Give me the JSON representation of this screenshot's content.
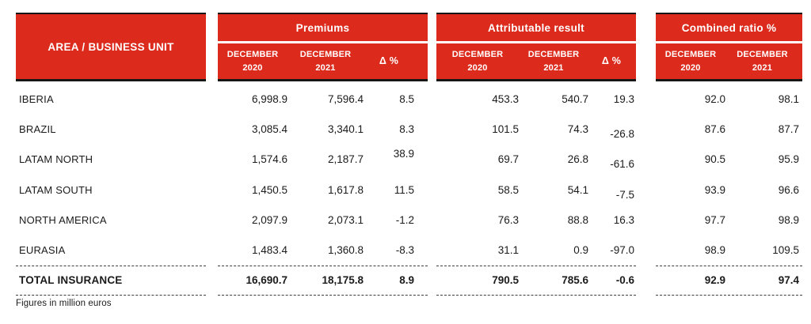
{
  "chart_data": {
    "type": "table",
    "area_header": "AREA / BUSINESS UNIT",
    "groups": [
      {
        "label": "Premiums",
        "columns": [
          "DECEMBER\n2020",
          "DECEMBER\n2021",
          "Δ %"
        ]
      },
      {
        "label": "Attributable result",
        "columns": [
          "DECEMBER\n2020",
          "DECEMBER\n2021",
          "Δ %"
        ]
      },
      {
        "label": "Combined ratio %",
        "columns": [
          "DECEMBER\n2020",
          "DECEMBER\n2021"
        ]
      }
    ],
    "rows": [
      {
        "area": "IBERIA",
        "premiums": [
          "6,998.9",
          "7,596.4",
          "8.5"
        ],
        "attributable": [
          "453.3",
          "540.7",
          "19.3"
        ],
        "combined": [
          "92.0",
          "98.1"
        ]
      },
      {
        "area": "BRAZIL",
        "premiums": [
          "3,085.4",
          "3,340.1",
          "8.3"
        ],
        "attributable": [
          "101.5",
          "74.3",
          "-26.8"
        ],
        "combined": [
          "87.6",
          "87.7"
        ]
      },
      {
        "area": "LATAM NORTH",
        "premiums": [
          "1,574.6",
          "2,187.7",
          "38.9"
        ],
        "attributable": [
          "69.7",
          "26.8",
          "-61.6"
        ],
        "combined": [
          "90.5",
          "95.9"
        ]
      },
      {
        "area": "LATAM SOUTH",
        "premiums": [
          "1,450.5",
          "1,617.8",
          "11.5"
        ],
        "attributable": [
          "58.5",
          "54.1",
          "-7.5"
        ],
        "combined": [
          "93.9",
          "96.6"
        ]
      },
      {
        "area": "NORTH AMERICA",
        "premiums": [
          "2,097.9",
          "2,073.1",
          "-1.2"
        ],
        "attributable": [
          "76.3",
          "88.8",
          "16.3"
        ],
        "combined": [
          "97.7",
          "98.9"
        ]
      },
      {
        "area": "EURASIA",
        "premiums": [
          "1,483.4",
          "1,360.8",
          "-8.3"
        ],
        "attributable": [
          "31.1",
          "0.9",
          "-97.0"
        ],
        "combined": [
          "98.9",
          "109.5"
        ]
      }
    ],
    "total": {
      "area": "TOTAL INSURANCE",
      "premiums": [
        "16,690.7",
        "18,175.8",
        "8.9"
      ],
      "attributable": [
        "790.5",
        "785.6",
        "-0.6"
      ],
      "combined": [
        "92.9",
        "97.4"
      ]
    },
    "footnote": "Figures in million euros"
  },
  "colors": {
    "brand_red": "#dc2a1c",
    "header_text": "#ffffff",
    "body_text": "#1b1b1b",
    "border_black": "#161616"
  }
}
